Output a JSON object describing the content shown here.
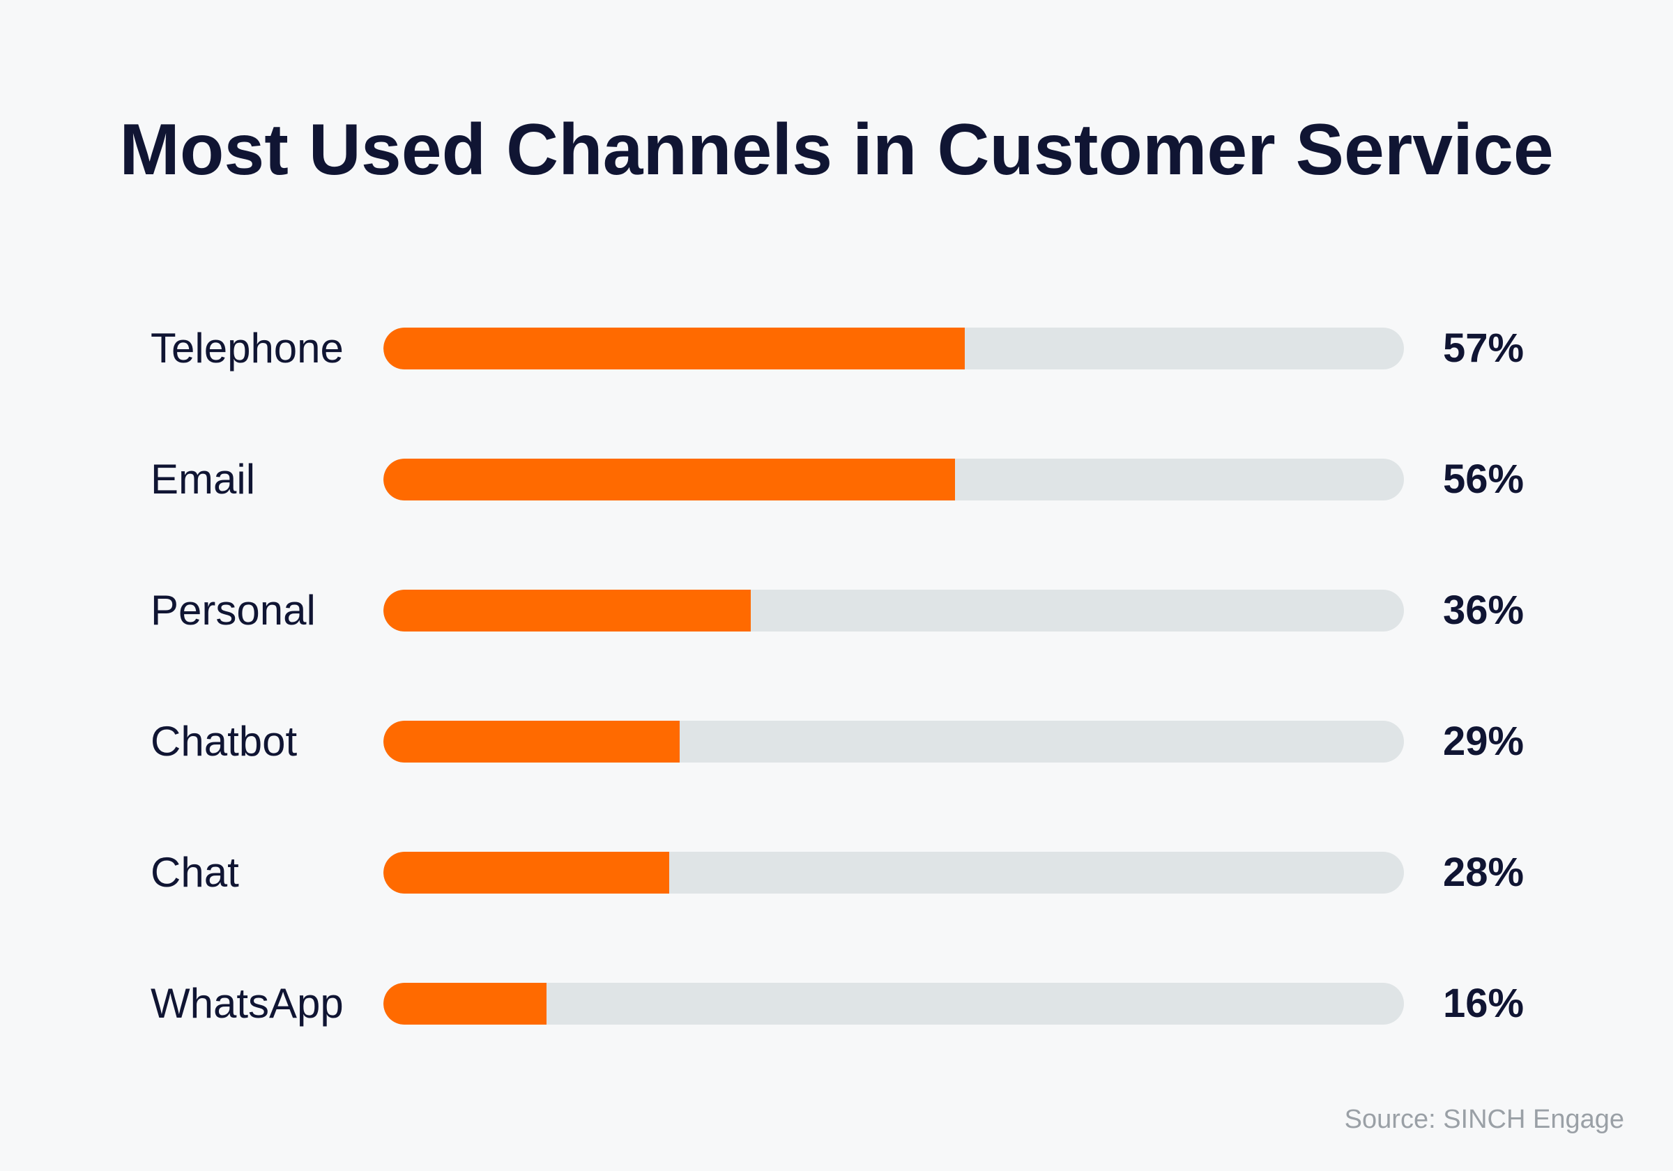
{
  "chart_data": {
    "type": "bar",
    "orientation": "horizontal",
    "title": "Most Used Channels in Customer Service",
    "categories": [
      "Telephone",
      "Email",
      "Personal",
      "Chatbot",
      "Chat",
      "WhatsApp"
    ],
    "values": [
      57,
      56,
      36,
      29,
      28,
      16
    ],
    "value_labels": [
      "57%",
      "56%",
      "36%",
      "29%",
      "28%",
      "16%"
    ],
    "unit": "%",
    "xlim": [
      0,
      100
    ],
    "grid": false,
    "legend": "none",
    "bar_color": "#ff6a00",
    "track_color": "#dfe4e6",
    "source": "Source: SINCH Engage"
  }
}
